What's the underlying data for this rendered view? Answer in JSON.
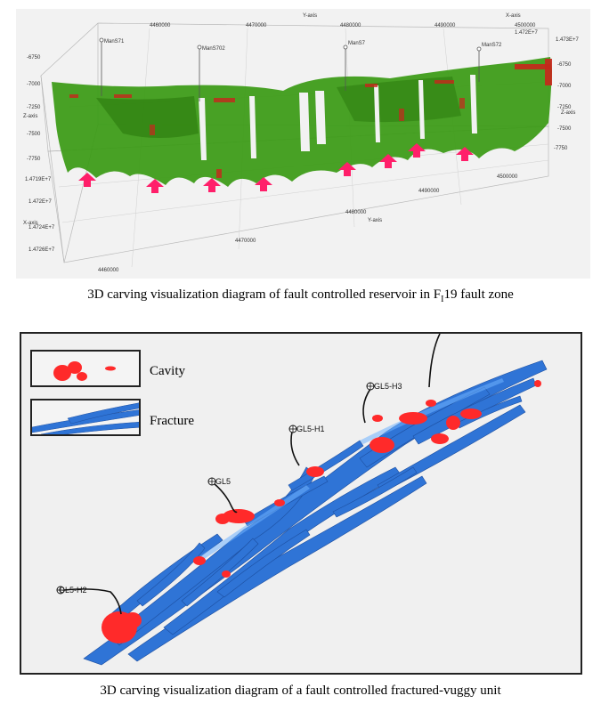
{
  "top_figure": {
    "caption_prefix": "3D carving visualization diagram of fault controlled reservoir in F",
    "caption_sub": "I",
    "caption_suffix": "19 fault zone",
    "axis_titles": {
      "x_top": "X-axis",
      "y_top": "Y-axis",
      "z_left": "Z-axis",
      "z_right": "Z-axis",
      "x_bottom": "X-axis",
      "y_bottom": "Y-axis"
    },
    "top_ticks": [
      "4460000",
      "4470000",
      "4480000",
      "4490000",
      "4500000"
    ],
    "top_right_ticks": [
      "1.472E+7",
      "1.473E+7"
    ],
    "z_ticks": [
      "-6750",
      "-7000",
      "-7250",
      "-7500",
      "-7750"
    ],
    "left_x_ticks": [
      "1.4719E+7",
      "1.472E+7",
      "1.4724E+7",
      "1.4726E+7"
    ],
    "bottom_ticks": [
      "4460000",
      "4470000",
      "4480000",
      "4490000",
      "4500000"
    ],
    "wells": [
      "ManS71",
      "ManS702",
      "ManS7",
      "ManS72"
    ]
  },
  "bottom_figure": {
    "caption": "3D carving visualization diagram of a fault controlled fractured-vuggy unit",
    "legend": {
      "cavity": "Cavity",
      "fracture": "Fracture"
    },
    "wells": [
      "GL5-H3",
      "GL5-H1",
      "GL5",
      "GL5-H2"
    ]
  },
  "colors": {
    "reservoir_green": "#3a9a14",
    "reservoir_red": "#c8261c",
    "arrow_pink": "#ff1f6a",
    "fracture_blue": "#2f74d6",
    "cavity_red": "#ff2a2a"
  }
}
